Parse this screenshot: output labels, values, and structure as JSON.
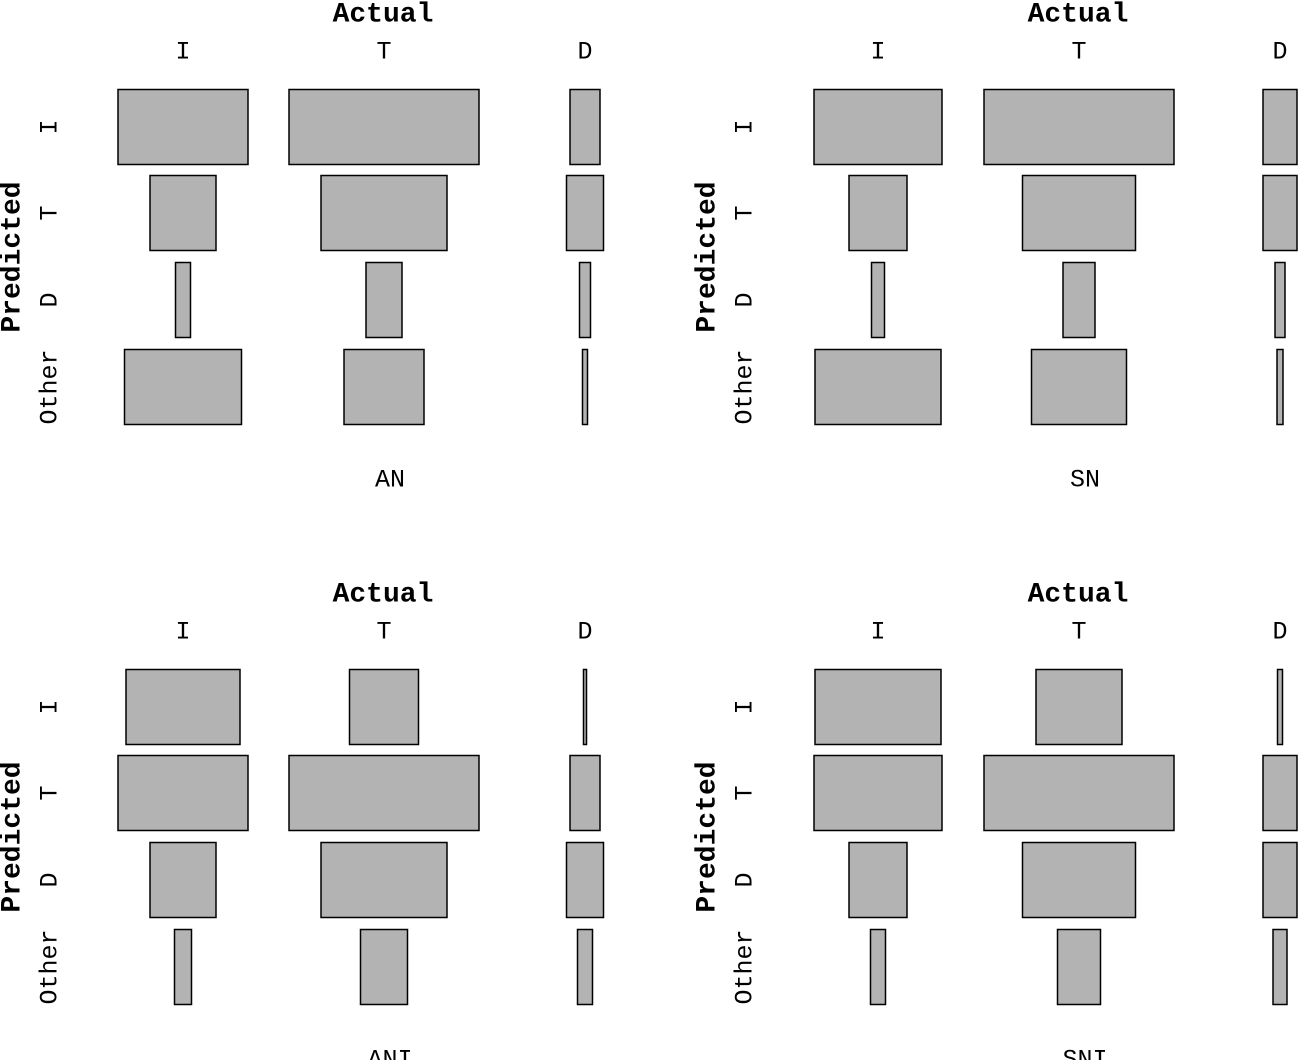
{
  "chart_data": [
    {
      "type": "mosaic",
      "title": "Actual",
      "ylabel": "Predicted",
      "caption": "AN",
      "color": "#b3b3b3",
      "categories": [
        "I",
        "T",
        "D"
      ],
      "rows": [
        "I",
        "T",
        "D",
        "Other"
      ],
      "values": [
        [
          130,
          190,
          30
        ],
        [
          66,
          126,
          37
        ],
        [
          15,
          36,
          11
        ],
        [
          117,
          80,
          5
        ]
      ]
    },
    {
      "type": "mosaic",
      "title": "Actual",
      "ylabel": "Predicted",
      "caption": "SN",
      "color": "#b3b3b3",
      "categories": [
        "I",
        "T",
        "D"
      ],
      "rows": [
        "I",
        "T",
        "D",
        "Other"
      ],
      "values": [
        [
          128,
          190,
          34
        ],
        [
          58,
          113,
          34
        ],
        [
          13,
          32,
          10
        ],
        [
          126,
          95,
          6
        ]
      ]
    },
    {
      "type": "mosaic",
      "title": "Actual",
      "ylabel": "Predicted",
      "caption": "ANI",
      "color": "#b3b3b3",
      "categories": [
        "I",
        "T",
        "D"
      ],
      "rows": [
        "I",
        "T",
        "D",
        "Other"
      ],
      "values": [
        [
          114,
          69,
          3
        ],
        [
          130,
          190,
          30
        ],
        [
          66,
          126,
          37
        ],
        [
          17,
          47,
          15
        ]
      ]
    },
    {
      "type": "mosaic",
      "title": "Actual",
      "ylabel": "Predicted",
      "caption": "SNI",
      "color": "#b3b3b3",
      "categories": [
        "I",
        "T",
        "D"
      ],
      "rows": [
        "I",
        "T",
        "D",
        "Other"
      ],
      "values": [
        [
          126,
          86,
          5
        ],
        [
          128,
          190,
          34
        ],
        [
          58,
          113,
          34
        ],
        [
          15,
          43,
          14
        ]
      ]
    }
  ]
}
